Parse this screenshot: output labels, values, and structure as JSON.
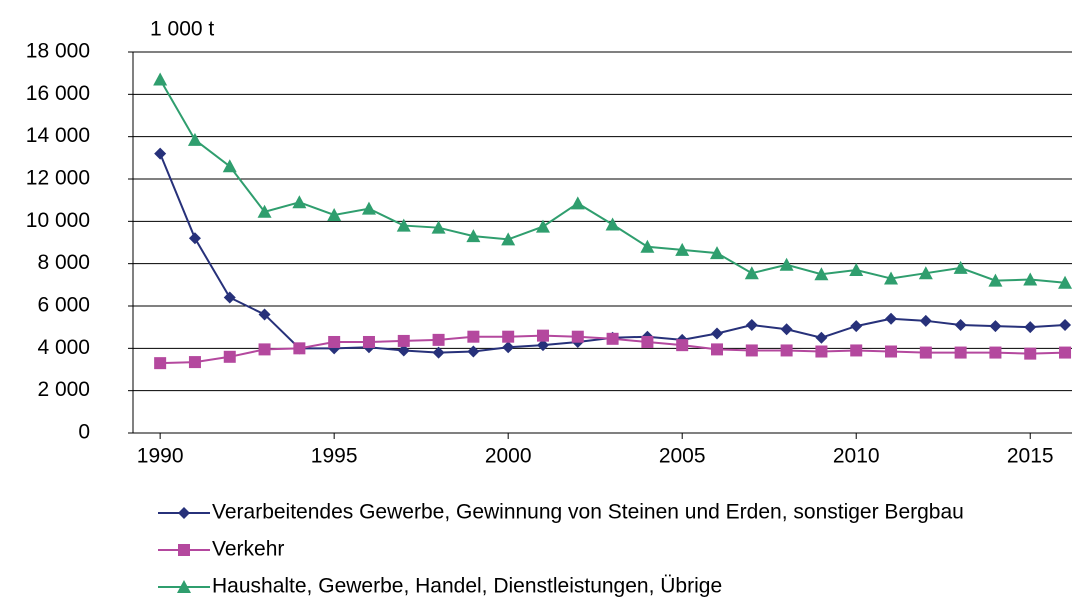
{
  "chart_data": {
    "type": "line",
    "ylabel": "1 000 t",
    "x": [
      1990,
      1991,
      1992,
      1993,
      1994,
      1995,
      1996,
      1997,
      1998,
      1999,
      2000,
      2001,
      2002,
      2003,
      2004,
      2005,
      2006,
      2007,
      2008,
      2009,
      2010,
      2011,
      2012,
      2013,
      2014,
      2015,
      2016
    ],
    "series": [
      {
        "name": "Verarbeitendes Gewerbe, Gewinnung von Steinen und Erden, sonstiger Bergbau",
        "color": "#27317a",
        "marker": "diamond",
        "values": [
          13200,
          9200,
          6400,
          5600,
          4000,
          4000,
          4050,
          3900,
          3800,
          3850,
          4050,
          4150,
          4300,
          4500,
          4550,
          4400,
          4700,
          5100,
          4900,
          4500,
          5050,
          5400,
          5300,
          5100,
          5050,
          5000,
          5100
        ]
      },
      {
        "name": "Verkehr",
        "color": "#b4489e",
        "marker": "square",
        "values": [
          3300,
          3350,
          3600,
          3950,
          4000,
          4300,
          4300,
          4350,
          4400,
          4550,
          4550,
          4600,
          4550,
          4450,
          4300,
          4150,
          3950,
          3900,
          3900,
          3850,
          3900,
          3850,
          3800,
          3800,
          3800,
          3750,
          3800
        ]
      },
      {
        "name": "Haushalte, Gewerbe, Handel, Dienstleistungen, Übrige",
        "color": "#2f9e6e",
        "marker": "triangle",
        "values": [
          16700,
          13850,
          12600,
          10450,
          10900,
          10300,
          10600,
          9800,
          9700,
          9300,
          9150,
          9750,
          10850,
          9850,
          8800,
          8650,
          8500,
          7550,
          7950,
          7500,
          7700,
          7300,
          7550,
          7800,
          7200,
          7250,
          7100
        ]
      }
    ],
    "xlim": [
      1989.22,
      2016.2
    ],
    "xticks": [
      1990,
      1995,
      2000,
      2005,
      2010,
      2015
    ],
    "ylim": [
      0,
      18000
    ],
    "yticks": [
      0,
      {
        "value": 2000,
        "label": "2 000"
      },
      {
        "value": 4000,
        "label": "4 000"
      },
      {
        "value": 6000,
        "label": "6 000"
      },
      {
        "value": 8000,
        "label": "8 000"
      },
      {
        "value": 10000,
        "label": "10 000"
      },
      {
        "value": 12000,
        "label": "12 000"
      },
      {
        "value": 14000,
        "label": "14 000"
      },
      {
        "value": 16000,
        "label": "16 000"
      },
      {
        "value": 18000,
        "label": "18 000"
      }
    ],
    "grid": true
  }
}
